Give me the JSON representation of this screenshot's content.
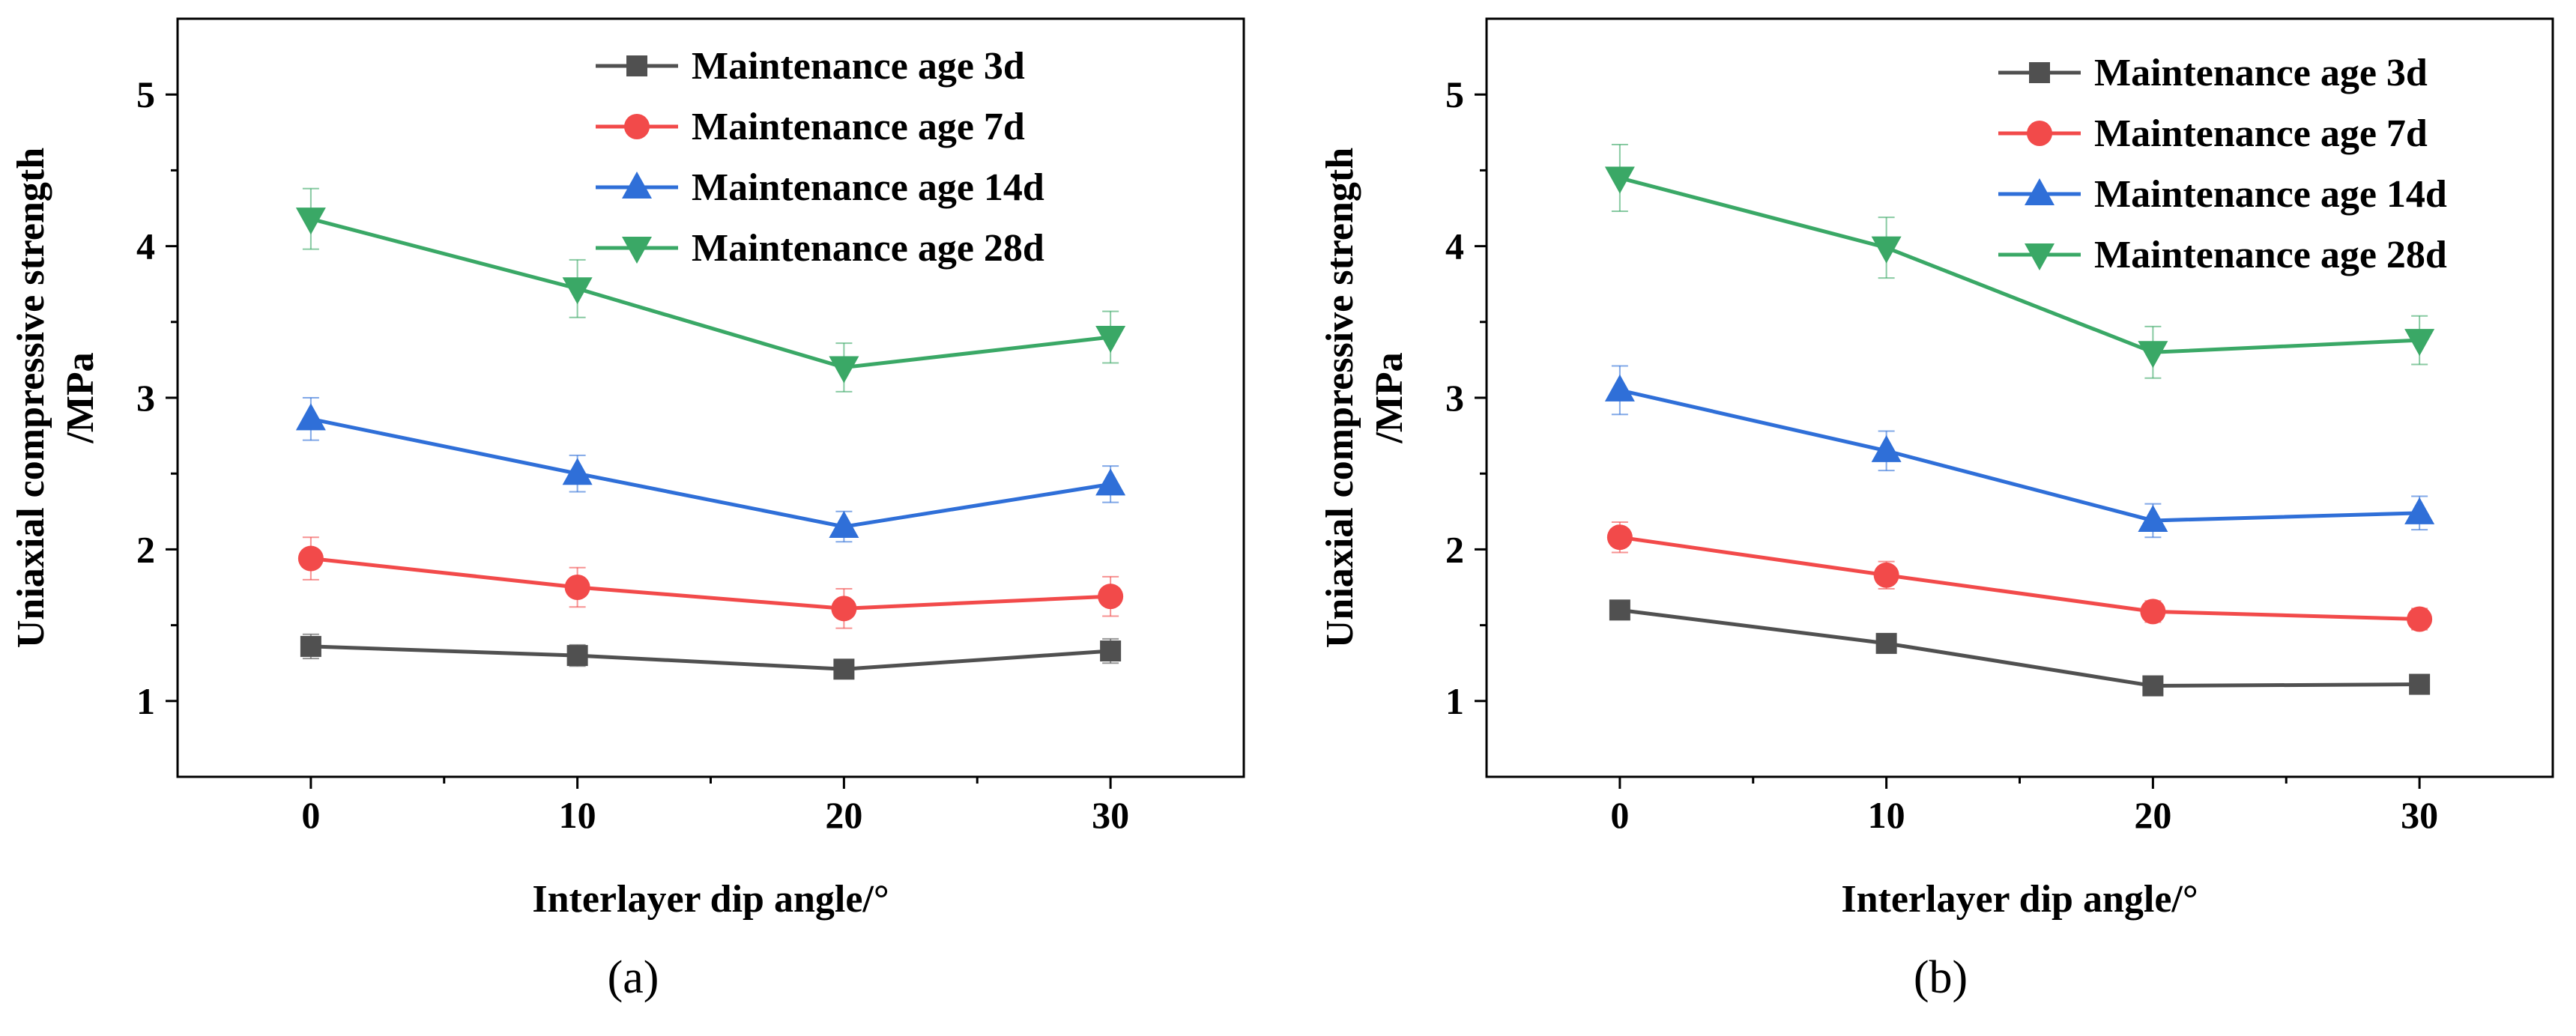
{
  "figure": {
    "panel_labels": [
      "(a)",
      "(b)"
    ]
  },
  "chart_data": [
    {
      "type": "line",
      "panel": "(a)",
      "title": "",
      "xlabel": "Interlayer dip angle/°",
      "ylabel_line1": "Uniaxial compressive strength",
      "ylabel_line2": "/MPa",
      "x": [
        0,
        10,
        20,
        30
      ],
      "xlim": [
        -5,
        35
      ],
      "ylim": [
        0.5,
        5.5
      ],
      "xticks": [
        0,
        10,
        20,
        30
      ],
      "yticks": [
        1,
        2,
        3,
        4,
        5
      ],
      "legend_position": "top-right",
      "series": [
        {
          "name": "Maintenance age 3d",
          "color": "#505050",
          "marker": "square",
          "values": [
            1.36,
            1.3,
            1.21,
            1.33
          ],
          "errors": [
            0.08,
            0.07,
            0.06,
            0.08
          ]
        },
        {
          "name": "Maintenance age 7d",
          "color": "#f24a4a",
          "marker": "circle",
          "values": [
            1.94,
            1.75,
            1.61,
            1.69
          ],
          "errors": [
            0.14,
            0.13,
            0.13,
            0.13
          ]
        },
        {
          "name": "Maintenance age 14d",
          "color": "#2f6fd8",
          "marker": "triangle-up",
          "values": [
            2.86,
            2.5,
            2.15,
            2.43
          ],
          "errors": [
            0.14,
            0.12,
            0.1,
            0.12
          ]
        },
        {
          "name": "Maintenance age 28d",
          "color": "#3aa866",
          "marker": "triangle-down",
          "values": [
            4.18,
            3.72,
            3.2,
            3.4
          ],
          "errors": [
            0.2,
            0.19,
            0.16,
            0.17
          ]
        }
      ]
    },
    {
      "type": "line",
      "panel": "(b)",
      "title": "",
      "xlabel": "Interlayer dip angle/°",
      "ylabel_line1": "Uniaxial compressive strength",
      "ylabel_line2": "/MPa",
      "x": [
        0,
        10,
        20,
        30
      ],
      "xlim": [
        -5,
        35
      ],
      "ylim": [
        0.5,
        5.5
      ],
      "xticks": [
        0,
        10,
        20,
        30
      ],
      "yticks": [
        1,
        2,
        3,
        4,
        5
      ],
      "legend_position": "top-right",
      "series": [
        {
          "name": "Maintenance age 3d",
          "color": "#505050",
          "marker": "square",
          "values": [
            1.6,
            1.38,
            1.1,
            1.11
          ],
          "errors": [
            0.06,
            0.05,
            0.04,
            0.04
          ]
        },
        {
          "name": "Maintenance age 7d",
          "color": "#f24a4a",
          "marker": "circle",
          "values": [
            2.08,
            1.83,
            1.59,
            1.54
          ],
          "errors": [
            0.1,
            0.09,
            0.07,
            0.07
          ]
        },
        {
          "name": "Maintenance age 14d",
          "color": "#2f6fd8",
          "marker": "triangle-up",
          "values": [
            3.05,
            2.65,
            2.19,
            2.24
          ],
          "errors": [
            0.16,
            0.13,
            0.11,
            0.11
          ]
        },
        {
          "name": "Maintenance age 28d",
          "color": "#3aa866",
          "marker": "triangle-down",
          "values": [
            4.45,
            3.99,
            3.3,
            3.38
          ],
          "errors": [
            0.22,
            0.2,
            0.17,
            0.16
          ]
        }
      ]
    }
  ]
}
